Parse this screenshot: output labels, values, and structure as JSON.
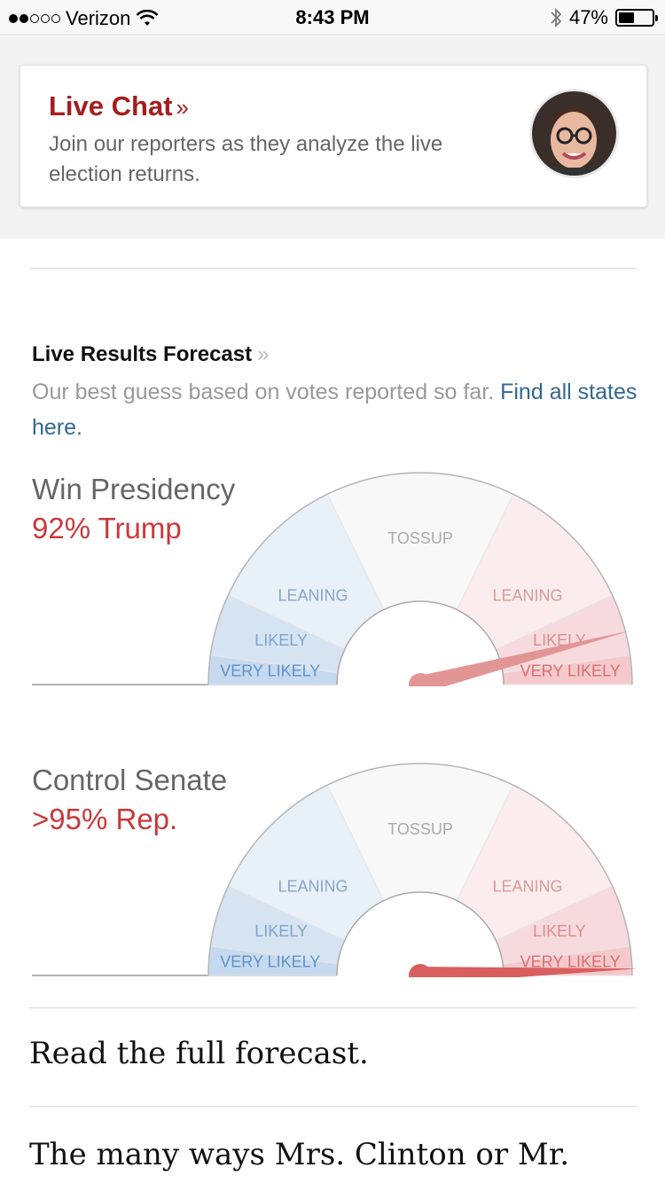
{
  "status_bar": {
    "carrier": "Verizon",
    "time": "8:43 PM",
    "battery": "47%",
    "battery_level": 0.47
  },
  "live_chat": {
    "title": "Live Chat",
    "chevron": "»",
    "description": "Join our reporters as they analyze the live election returns."
  },
  "forecast": {
    "title": "Live Results Forecast",
    "chevron": "»",
    "description": "Our best guess based on votes reported so far.",
    "link_text": "Find all states here."
  },
  "gauges": [
    {
      "label": "Win Presidency",
      "value": "92% Trump",
      "needle_probability": 0.92,
      "bands": {
        "tossup": "TOSSUP",
        "leaning": "LEANING",
        "likely": "LIKELY",
        "very_likely": "VERY LIKELY"
      }
    },
    {
      "label": "Control Senate",
      "value": ">95% Rep.",
      "needle_probability": 0.99,
      "bands": {
        "tossup": "TOSSUP",
        "leaning": "LEANING",
        "likely": "LIKELY",
        "very_likely": "VERY LIKELY"
      }
    }
  ],
  "colors": {
    "dem": "#4b8fcf",
    "rep": "#d66b6b",
    "brand_red": "#a51c1c",
    "link": "#326891"
  },
  "footer": {
    "read_full": "Read the full forecast.",
    "many_ways": "The many ways Mrs. Clinton or Mr."
  }
}
